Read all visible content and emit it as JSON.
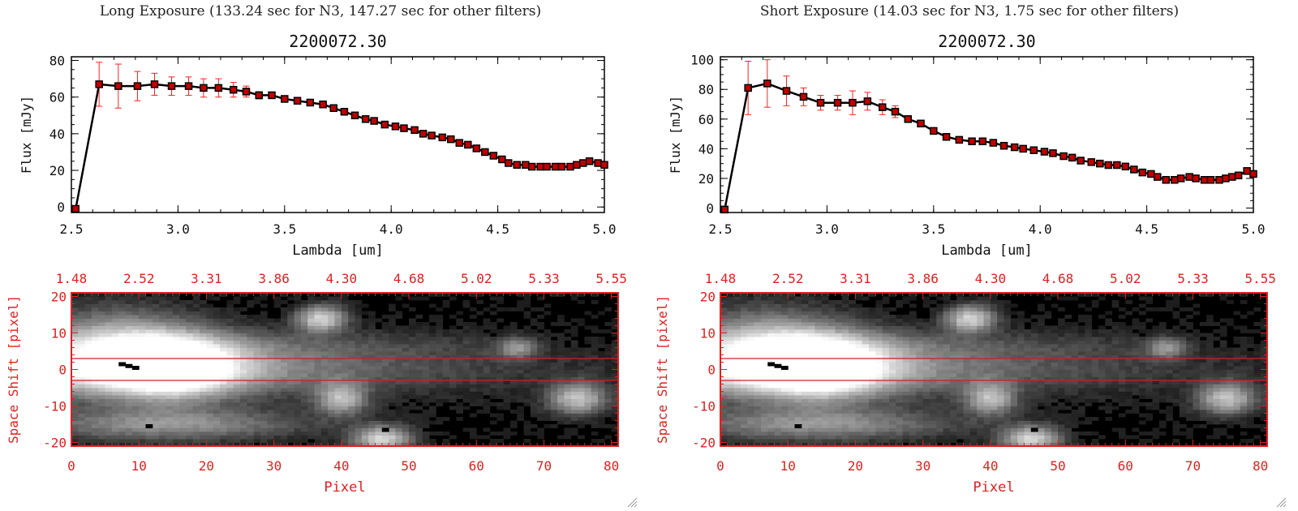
{
  "colors": {
    "line": "#000000",
    "marker": "#c00000",
    "error": "#ff1e1e",
    "image_axis": "#e02020",
    "guide": "#cc2020"
  },
  "panels": [
    {
      "exposure_title": "Long Exposure (133.24 sec for N3, 147.27 sec for other filters)",
      "spectrum": {
        "type": "line",
        "title": "2200072.30",
        "xlabel": "Lambda [um]",
        "ylabel": "Flux [mJy]",
        "xlim": [
          2.5,
          5.0
        ],
        "ylim": [
          -3,
          82
        ],
        "x_ticks": [
          "2.5",
          "3.0",
          "3.5",
          "4.0",
          "4.5",
          "5.0"
        ],
        "y_ticks": [
          "0",
          "20",
          "40",
          "60",
          "80"
        ],
        "x": [
          2.52,
          2.63,
          2.72,
          2.81,
          2.89,
          2.97,
          3.05,
          3.12,
          3.19,
          3.26,
          3.32,
          3.38,
          3.44,
          3.5,
          3.56,
          3.62,
          3.68,
          3.73,
          3.78,
          3.83,
          3.88,
          3.92,
          3.97,
          4.02,
          4.06,
          4.11,
          4.15,
          4.19,
          4.24,
          4.28,
          4.32,
          4.36,
          4.4,
          4.44,
          4.48,
          4.52,
          4.55,
          4.59,
          4.63,
          4.66,
          4.7,
          4.73,
          4.77,
          4.8,
          4.84,
          4.87,
          4.9,
          4.93,
          4.97,
          5.0
        ],
        "y": [
          -1,
          67,
          66,
          66,
          67,
          66,
          66,
          65,
          65,
          64,
          63,
          61,
          61,
          59,
          58,
          57,
          56,
          54,
          52,
          50,
          48,
          47,
          45,
          44,
          43,
          42,
          40,
          39,
          38,
          37,
          35,
          34,
          32,
          30,
          28,
          26,
          24,
          23,
          23,
          22,
          22,
          22,
          22,
          22,
          22,
          23,
          24,
          25,
          24,
          23
        ],
        "yerr": [
          0,
          12,
          12,
          8,
          6,
          5,
          5,
          5,
          5,
          4,
          3,
          2,
          1.5,
          1.5,
          1,
          1,
          1,
          1,
          1,
          1,
          1,
          1,
          1,
          1,
          1,
          1,
          1,
          1,
          1,
          1,
          1,
          1,
          1,
          1,
          1,
          1,
          1,
          1,
          1,
          1,
          1,
          1,
          1,
          1,
          1,
          1,
          1,
          1,
          1,
          1
        ]
      },
      "image": {
        "title": "",
        "xlabel": "Pixel",
        "ylabel": "Space Shift [pixel]",
        "xlim": [
          0,
          81
        ],
        "ylim": [
          -21,
          21
        ],
        "x_ticks": [
          "0",
          "10",
          "20",
          "30",
          "40",
          "50",
          "60",
          "70",
          "80"
        ],
        "y_ticks": [
          "-20",
          "-10",
          "0",
          "10",
          "20"
        ],
        "top_ticks": [
          "1.48",
          "2.52",
          "3.31",
          "3.86",
          "4.30",
          "4.68",
          "5.02",
          "5.33",
          "5.55"
        ],
        "aperture": [
          -3,
          3
        ]
      }
    },
    {
      "exposure_title": "Short Exposure (14.03 sec for N3, 1.75 sec for other filters)",
      "spectrum": {
        "type": "line",
        "title": "2200072.30",
        "xlabel": "Lambda [um]",
        "ylabel": "Flux [mJy]",
        "xlim": [
          2.5,
          5.0
        ],
        "ylim": [
          -3,
          102
        ],
        "x_ticks": [
          "2.5",
          "3.0",
          "3.5",
          "4.0",
          "4.5",
          "5.0"
        ],
        "y_ticks": [
          "0",
          "20",
          "40",
          "60",
          "80",
          "100"
        ],
        "x": [
          2.52,
          2.63,
          2.72,
          2.81,
          2.89,
          2.97,
          3.05,
          3.12,
          3.19,
          3.26,
          3.32,
          3.38,
          3.44,
          3.5,
          3.56,
          3.62,
          3.68,
          3.73,
          3.78,
          3.83,
          3.88,
          3.92,
          3.97,
          4.02,
          4.06,
          4.11,
          4.15,
          4.19,
          4.24,
          4.28,
          4.32,
          4.36,
          4.4,
          4.44,
          4.48,
          4.52,
          4.55,
          4.59,
          4.63,
          4.66,
          4.7,
          4.73,
          4.77,
          4.8,
          4.84,
          4.87,
          4.9,
          4.93,
          4.97,
          5.0
        ],
        "y": [
          -1,
          81,
          84,
          79,
          75,
          71,
          71,
          71,
          72,
          68,
          65,
          60,
          57,
          52,
          48,
          46,
          45,
          45,
          44,
          42,
          41,
          40,
          39,
          38,
          37,
          35,
          34,
          32,
          31,
          30,
          29,
          29,
          28,
          26,
          24,
          23,
          21,
          19,
          19,
          20,
          21,
          20,
          19,
          19,
          19,
          20,
          21,
          22,
          25,
          23
        ],
        "yerr": [
          0,
          18,
          16,
          10,
          6,
          5,
          5,
          8,
          6,
          5,
          4,
          2,
          1.5,
          1.5,
          1,
          1,
          1,
          1,
          1,
          1,
          1,
          1,
          1,
          1,
          1,
          1,
          1,
          1,
          1,
          1,
          1,
          1,
          1,
          1,
          1,
          1,
          1,
          1,
          1,
          1,
          1,
          1,
          1,
          1,
          1,
          1,
          1,
          1,
          1,
          1
        ]
      },
      "image": {
        "title": "",
        "xlabel": "Pixel",
        "ylabel": "Space Shift [pixel]",
        "xlim": [
          0,
          81
        ],
        "ylim": [
          -21,
          21
        ],
        "x_ticks": [
          "0",
          "10",
          "20",
          "30",
          "40",
          "50",
          "60",
          "70",
          "80"
        ],
        "y_ticks": [
          "-20",
          "-10",
          "0",
          "10",
          "20"
        ],
        "top_ticks": [
          "1.48",
          "2.52",
          "3.31",
          "3.86",
          "4.30",
          "4.68",
          "5.02",
          "5.33",
          "5.55"
        ],
        "aperture": [
          -3,
          3
        ]
      }
    }
  ],
  "chart_data": [
    {
      "type": "line",
      "title": "2200072.30",
      "xlabel": "Lambda [um]",
      "ylabel": "Flux [mJy]",
      "xlim": [
        2.5,
        5.0
      ],
      "ylim": [
        -3,
        82
      ],
      "series": [
        {
          "name": "",
          "x": [
            2.52,
            2.63,
            2.72,
            2.81,
            2.89,
            2.97,
            3.05,
            3.12,
            3.19,
            3.26,
            3.32,
            3.38,
            3.44,
            3.5,
            3.56,
            3.62,
            3.68,
            3.73,
            3.78,
            3.83,
            3.88,
            3.92,
            3.97,
            4.02,
            4.06,
            4.11,
            4.15,
            4.19,
            4.24,
            4.28,
            4.32,
            4.36,
            4.4,
            4.44,
            4.48,
            4.52,
            4.55,
            4.59,
            4.63,
            4.66,
            4.7,
            4.73,
            4.77,
            4.8,
            4.84,
            4.87,
            4.9,
            4.93,
            4.97,
            5.0
          ],
          "values": [
            -1,
            67,
            66,
            66,
            67,
            66,
            66,
            65,
            65,
            64,
            63,
            61,
            61,
            59,
            58,
            57,
            56,
            54,
            52,
            50,
            48,
            47,
            45,
            44,
            43,
            42,
            40,
            39,
            38,
            37,
            35,
            34,
            32,
            30,
            28,
            26,
            24,
            23,
            23,
            22,
            22,
            22,
            22,
            22,
            22,
            23,
            24,
            25,
            24,
            23
          ]
        }
      ]
    },
    {
      "type": "line",
      "title": "2200072.30",
      "xlabel": "Lambda [um]",
      "ylabel": "Flux [mJy]",
      "xlim": [
        2.5,
        5.0
      ],
      "ylim": [
        -3,
        102
      ],
      "series": [
        {
          "name": "",
          "x": [
            2.52,
            2.63,
            2.72,
            2.81,
            2.89,
            2.97,
            3.05,
            3.12,
            3.19,
            3.26,
            3.32,
            3.38,
            3.44,
            3.5,
            3.56,
            3.62,
            3.68,
            3.73,
            3.78,
            3.83,
            3.88,
            3.92,
            3.97,
            4.02,
            4.06,
            4.11,
            4.15,
            4.19,
            4.24,
            4.28,
            4.32,
            4.36,
            4.4,
            4.44,
            4.48,
            4.52,
            4.55,
            4.59,
            4.63,
            4.66,
            4.7,
            4.73,
            4.77,
            4.8,
            4.84,
            4.87,
            4.9,
            4.93,
            4.97,
            5.0
          ],
          "values": [
            -1,
            81,
            84,
            79,
            75,
            71,
            71,
            71,
            72,
            68,
            65,
            60,
            57,
            52,
            48,
            46,
            45,
            45,
            44,
            42,
            41,
            40,
            39,
            38,
            37,
            35,
            34,
            32,
            31,
            30,
            29,
            29,
            28,
            26,
            24,
            23,
            21,
            19,
            19,
            20,
            21,
            20,
            19,
            19,
            19,
            20,
            21,
            22,
            25,
            23
          ]
        }
      ]
    },
    {
      "type": "heatmap",
      "xlabel": "Pixel",
      "ylabel": "Space Shift [pixel]",
      "xlim": [
        0,
        81
      ],
      "ylim": [
        -21,
        21
      ],
      "top_axis_ticks": [
        "1.48",
        "2.52",
        "3.31",
        "3.86",
        "4.30",
        "4.68",
        "5.02",
        "5.33",
        "5.55"
      ]
    },
    {
      "type": "heatmap",
      "xlabel": "Pixel",
      "ylabel": "Space Shift [pixel]",
      "xlim": [
        0,
        81
      ],
      "ylim": [
        -21,
        21
      ],
      "top_axis_ticks": [
        "1.48",
        "2.52",
        "3.31",
        "3.86",
        "4.30",
        "4.68",
        "5.02",
        "5.33",
        "5.55"
      ]
    }
  ]
}
